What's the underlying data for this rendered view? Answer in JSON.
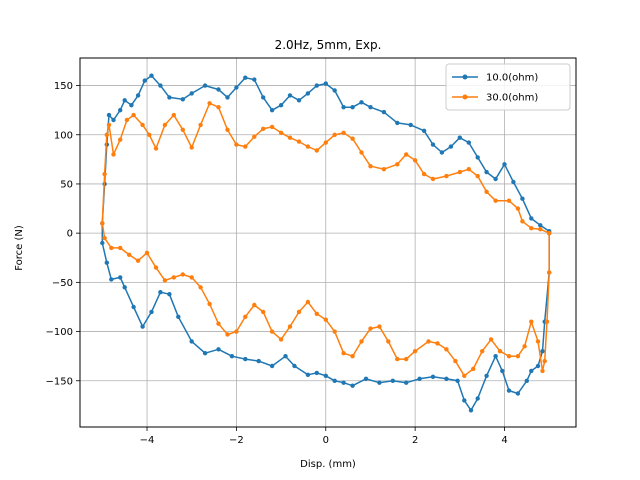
{
  "chart_data": {
    "type": "line",
    "title": "2.0Hz, 5mm, Exp.",
    "xlabel": "Disp. (mm)",
    "ylabel": "Force (N)",
    "xlim": [
      -5.5,
      5.6
    ],
    "ylim": [
      -197,
      178
    ],
    "xticks": [
      -4,
      -2,
      0,
      2,
      4
    ],
    "yticks": [
      -150,
      -100,
      -50,
      0,
      50,
      100,
      150
    ],
    "grid": true,
    "legend": "top-right",
    "series": [
      {
        "name": "10.0(ohm)",
        "color": "#1f77b4",
        "marker": "circle",
        "points": [
          [
            5.0,
            0
          ],
          [
            5.0,
            -40
          ],
          [
            4.9,
            -90
          ],
          [
            4.85,
            -120
          ],
          [
            4.75,
            -135
          ],
          [
            4.6,
            -140
          ],
          [
            4.5,
            -150
          ],
          [
            4.3,
            -163
          ],
          [
            4.1,
            -160
          ],
          [
            3.95,
            -140
          ],
          [
            3.8,
            -125
          ],
          [
            3.6,
            -145
          ],
          [
            3.4,
            -168
          ],
          [
            3.25,
            -180
          ],
          [
            3.1,
            -170
          ],
          [
            2.95,
            -150
          ],
          [
            2.7,
            -148
          ],
          [
            2.4,
            -146
          ],
          [
            2.1,
            -148
          ],
          [
            1.8,
            -152
          ],
          [
            1.5,
            -150
          ],
          [
            1.2,
            -152
          ],
          [
            0.9,
            -148
          ],
          [
            0.6,
            -155
          ],
          [
            0.4,
            -152
          ],
          [
            0.2,
            -150
          ],
          [
            0.0,
            -145
          ],
          [
            -0.2,
            -142
          ],
          [
            -0.4,
            -144
          ],
          [
            -0.7,
            -135
          ],
          [
            -0.9,
            -125
          ],
          [
            -1.2,
            -135
          ],
          [
            -1.5,
            -130
          ],
          [
            -1.8,
            -128
          ],
          [
            -2.1,
            -125
          ],
          [
            -2.4,
            -118
          ],
          [
            -2.7,
            -122
          ],
          [
            -3.0,
            -110
          ],
          [
            -3.3,
            -85
          ],
          [
            -3.5,
            -62
          ],
          [
            -3.7,
            -60
          ],
          [
            -3.9,
            -80
          ],
          [
            -4.1,
            -95
          ],
          [
            -4.3,
            -75
          ],
          [
            -4.5,
            -55
          ],
          [
            -4.6,
            -45
          ],
          [
            -4.8,
            -47
          ],
          [
            -4.9,
            -30
          ],
          [
            -5.0,
            -10
          ],
          [
            -5.0,
            10
          ],
          [
            -4.95,
            50
          ],
          [
            -4.9,
            90
          ],
          [
            -4.85,
            120
          ],
          [
            -4.75,
            115
          ],
          [
            -4.6,
            125
          ],
          [
            -4.5,
            135
          ],
          [
            -4.35,
            130
          ],
          [
            -4.2,
            140
          ],
          [
            -4.05,
            155
          ],
          [
            -3.9,
            160
          ],
          [
            -3.7,
            150
          ],
          [
            -3.5,
            138
          ],
          [
            -3.2,
            136
          ],
          [
            -3.0,
            142
          ],
          [
            -2.7,
            150
          ],
          [
            -2.4,
            146
          ],
          [
            -2.2,
            138
          ],
          [
            -2.0,
            148
          ],
          [
            -1.8,
            158
          ],
          [
            -1.6,
            156
          ],
          [
            -1.4,
            138
          ],
          [
            -1.2,
            125
          ],
          [
            -1.0,
            130
          ],
          [
            -0.8,
            140
          ],
          [
            -0.6,
            135
          ],
          [
            -0.4,
            142
          ],
          [
            -0.2,
            150
          ],
          [
            0.0,
            152
          ],
          [
            0.2,
            145
          ],
          [
            0.4,
            128
          ],
          [
            0.6,
            128
          ],
          [
            0.8,
            133
          ],
          [
            1.0,
            128
          ],
          [
            1.3,
            123
          ],
          [
            1.6,
            112
          ],
          [
            1.9,
            110
          ],
          [
            2.2,
            104
          ],
          [
            2.4,
            90
          ],
          [
            2.6,
            82
          ],
          [
            2.8,
            88
          ],
          [
            3.0,
            97
          ],
          [
            3.2,
            92
          ],
          [
            3.4,
            77
          ],
          [
            3.6,
            62
          ],
          [
            3.8,
            55
          ],
          [
            4.0,
            70
          ],
          [
            4.2,
            52
          ],
          [
            4.4,
            35
          ],
          [
            4.6,
            15
          ],
          [
            4.8,
            8
          ],
          [
            5.0,
            2
          ]
        ]
      },
      {
        "name": "30.0(ohm)",
        "color": "#ff7f0e",
        "marker": "circle",
        "points": [
          [
            5.0,
            0
          ],
          [
            5.0,
            -40
          ],
          [
            4.95,
            -90
          ],
          [
            4.9,
            -130
          ],
          [
            4.85,
            -140
          ],
          [
            4.75,
            -110
          ],
          [
            4.6,
            -90
          ],
          [
            4.45,
            -115
          ],
          [
            4.3,
            -125
          ],
          [
            4.1,
            -125
          ],
          [
            3.9,
            -120
          ],
          [
            3.7,
            -108
          ],
          [
            3.5,
            -120
          ],
          [
            3.3,
            -138
          ],
          [
            3.1,
            -145
          ],
          [
            2.9,
            -130
          ],
          [
            2.7,
            -118
          ],
          [
            2.5,
            -112
          ],
          [
            2.3,
            -110
          ],
          [
            2.0,
            -120
          ],
          [
            1.8,
            -128
          ],
          [
            1.6,
            -128
          ],
          [
            1.4,
            -110
          ],
          [
            1.2,
            -95
          ],
          [
            1.0,
            -97
          ],
          [
            0.8,
            -110
          ],
          [
            0.6,
            -125
          ],
          [
            0.4,
            -122
          ],
          [
            0.2,
            -100
          ],
          [
            0.0,
            -88
          ],
          [
            -0.2,
            -82
          ],
          [
            -0.4,
            -70
          ],
          [
            -0.6,
            -80
          ],
          [
            -0.8,
            -95
          ],
          [
            -1.0,
            -108
          ],
          [
            -1.2,
            -100
          ],
          [
            -1.4,
            -80
          ],
          [
            -1.6,
            -73
          ],
          [
            -1.8,
            -85
          ],
          [
            -2.0,
            -100
          ],
          [
            -2.2,
            -103
          ],
          [
            -2.4,
            -92
          ],
          [
            -2.6,
            -72
          ],
          [
            -2.8,
            -55
          ],
          [
            -3.0,
            -45
          ],
          [
            -3.2,
            -42
          ],
          [
            -3.4,
            -45
          ],
          [
            -3.6,
            -48
          ],
          [
            -3.8,
            -35
          ],
          [
            -4.0,
            -20
          ],
          [
            -4.2,
            -28
          ],
          [
            -4.4,
            -22
          ],
          [
            -4.6,
            -15
          ],
          [
            -4.8,
            -15
          ],
          [
            -4.95,
            -5
          ],
          [
            -5.0,
            10
          ],
          [
            -4.95,
            60
          ],
          [
            -4.9,
            100
          ],
          [
            -4.85,
            110
          ],
          [
            -4.75,
            80
          ],
          [
            -4.6,
            95
          ],
          [
            -4.45,
            115
          ],
          [
            -4.3,
            120
          ],
          [
            -4.1,
            110
          ],
          [
            -3.95,
            100
          ],
          [
            -3.8,
            86
          ],
          [
            -3.6,
            110
          ],
          [
            -3.4,
            120
          ],
          [
            -3.2,
            105
          ],
          [
            -3.0,
            87
          ],
          [
            -2.8,
            110
          ],
          [
            -2.6,
            132
          ],
          [
            -2.4,
            128
          ],
          [
            -2.2,
            105
          ],
          [
            -2.0,
            90
          ],
          [
            -1.8,
            88
          ],
          [
            -1.6,
            98
          ],
          [
            -1.4,
            106
          ],
          [
            -1.2,
            108
          ],
          [
            -1.0,
            102
          ],
          [
            -0.8,
            97
          ],
          [
            -0.6,
            93
          ],
          [
            -0.4,
            88
          ],
          [
            -0.2,
            84
          ],
          [
            0.0,
            92
          ],
          [
            0.2,
            100
          ],
          [
            0.4,
            102
          ],
          [
            0.6,
            96
          ],
          [
            0.8,
            82
          ],
          [
            1.0,
            68
          ],
          [
            1.3,
            65
          ],
          [
            1.6,
            70
          ],
          [
            1.8,
            80
          ],
          [
            2.0,
            74
          ],
          [
            2.2,
            60
          ],
          [
            2.4,
            55
          ],
          [
            2.7,
            58
          ],
          [
            3.0,
            62
          ],
          [
            3.2,
            65
          ],
          [
            3.4,
            58
          ],
          [
            3.6,
            42
          ],
          [
            3.8,
            33
          ],
          [
            4.1,
            33
          ],
          [
            4.3,
            25
          ],
          [
            4.4,
            12
          ],
          [
            4.6,
            5
          ],
          [
            4.8,
            4
          ],
          [
            5.0,
            0
          ]
        ]
      }
    ]
  }
}
